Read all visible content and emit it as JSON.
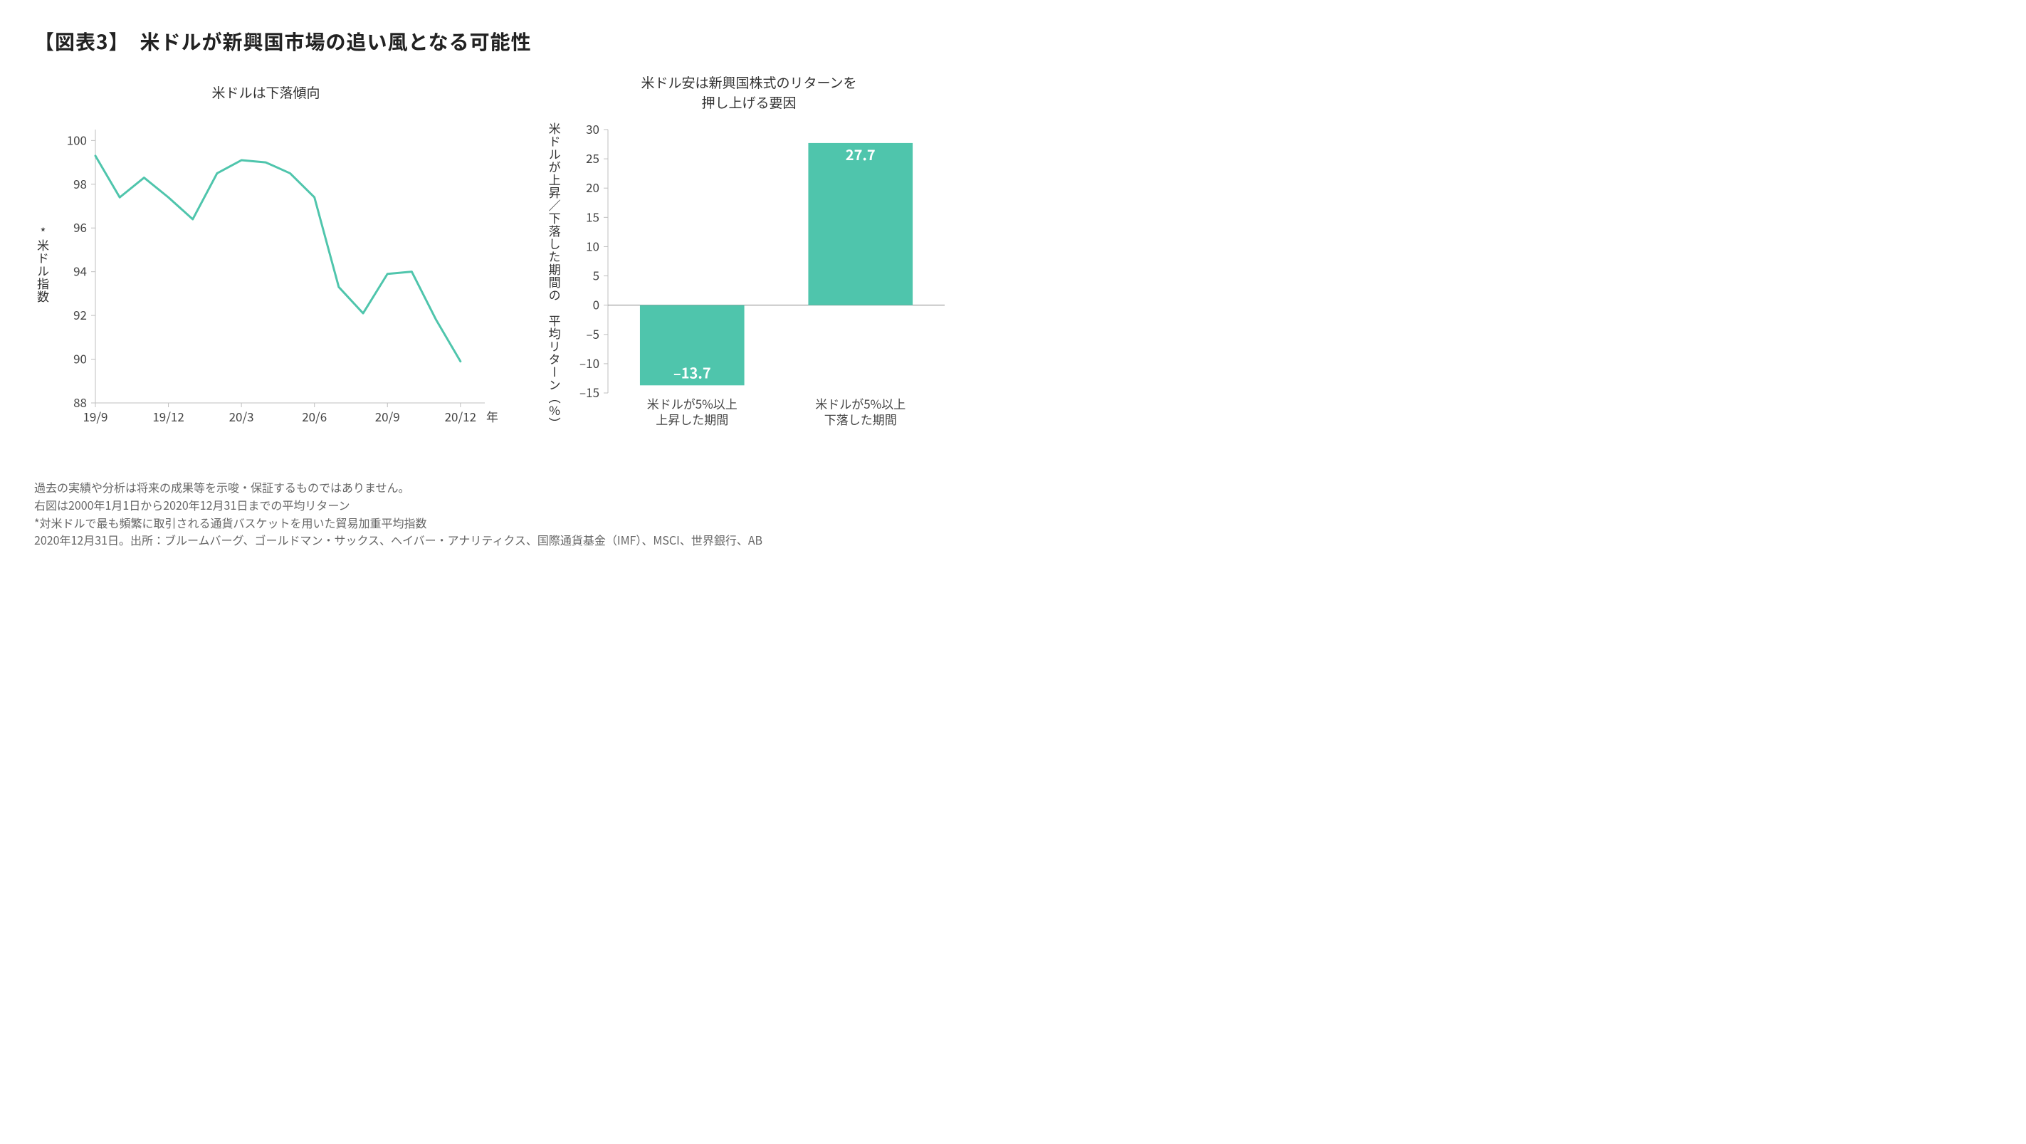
{
  "page": {
    "title": "【図表3】　米ドルが新興国市場の追い風となる可能性",
    "bg_color": "#ffffff",
    "accent_color": "#4fc5ac"
  },
  "line_chart": {
    "type": "line",
    "title": "米ドルは下落傾向",
    "y_axis_label": "*米ドル指数",
    "x_axis_label": "年/月",
    "x_tick_labels": [
      "19/9",
      "19/12",
      "20/3",
      "20/6",
      "20/9",
      "20/12"
    ],
    "x_tick_positions": [
      0,
      3,
      6,
      9,
      12,
      15
    ],
    "x_range": [
      0,
      16
    ],
    "y_ticks": [
      88,
      90,
      92,
      94,
      96,
      98,
      100
    ],
    "ylim": [
      88,
      100.5
    ],
    "series": {
      "color": "#4fc5ac",
      "stroke_width": 3,
      "points": [
        {
          "x": 0,
          "y": 99.3
        },
        {
          "x": 1,
          "y": 97.4
        },
        {
          "x": 2,
          "y": 98.3
        },
        {
          "x": 3,
          "y": 97.4
        },
        {
          "x": 4,
          "y": 96.4
        },
        {
          "x": 5,
          "y": 98.5
        },
        {
          "x": 6,
          "y": 99.1
        },
        {
          "x": 7,
          "y": 99.0
        },
        {
          "x": 8,
          "y": 98.5
        },
        {
          "x": 9,
          "y": 97.4
        },
        {
          "x": 10,
          "y": 93.3
        },
        {
          "x": 11,
          "y": 92.1
        },
        {
          "x": 12,
          "y": 93.9
        },
        {
          "x": 13,
          "y": 94.0
        },
        {
          "x": 14,
          "y": 91.8
        },
        {
          "x": 15,
          "y": 89.9
        }
      ]
    },
    "axis_color": "#bfbfbf",
    "tick_font_size": 17,
    "tick_color": "#444"
  },
  "bar_chart": {
    "type": "bar",
    "title": "米ドル安は新興国株式のリターンを\n押し上げる要因",
    "y_axis_label": "米ドルが上昇／下落した期間の\n平均リターン（%）",
    "y_ticks": [
      -15,
      -10,
      -5,
      0,
      5,
      10,
      15,
      20,
      25,
      30
    ],
    "y_tick_labels": [
      "–15",
      "–10",
      "–5",
      "0",
      "5",
      "10",
      "15",
      "20",
      "25",
      "30"
    ],
    "ylim": [
      -15,
      30
    ],
    "categories": [
      {
        "label_line1": "米ドルが5%以上",
        "label_line2": "上昇した期間",
        "value": -13.7,
        "value_label": "–13.7"
      },
      {
        "label_line1": "米ドルが5%以上",
        "label_line2": "下落した期間",
        "value": 27.7,
        "value_label": "27.7"
      }
    ],
    "bar_color": "#4fc5ac",
    "value_label_color": "#ffffff",
    "value_label_fontsize": 20,
    "value_label_fontweight": "700",
    "axis_color": "#bfbfbf",
    "zero_line_color": "#888888",
    "tick_font_size": 17,
    "tick_color": "#444",
    "bar_width_ratio": 0.62
  },
  "footnotes": [
    "過去の実績や分析は将来の成果等を示唆・保証するものではありません。",
    "右図は2000年1月1日から2020年12月31日までの平均リターン",
    "*対米ドルで最も頻繁に取引される通貨バスケットを用いた貿易加重平均指数",
    "2020年12月31日。出所：ブルームバーグ、ゴールドマン・サックス、ヘイバー・アナリティクス、国際通貨基金（IMF）、MSCI、世界銀行、AB"
  ]
}
